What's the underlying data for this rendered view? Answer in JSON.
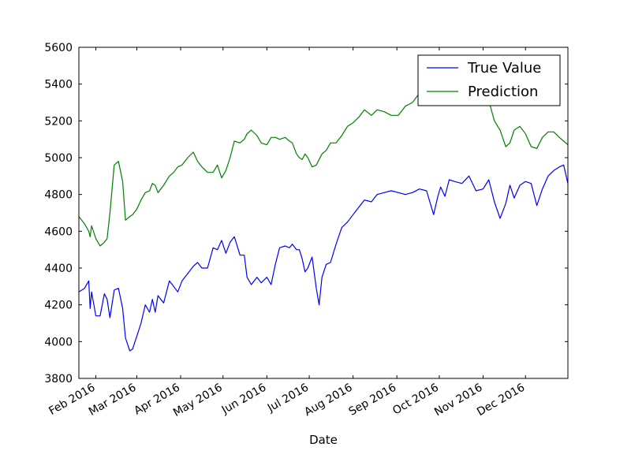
{
  "chart_data": {
    "type": "line",
    "xlabel": "Date",
    "ylabel": "",
    "ylim": [
      3800,
      5600
    ],
    "yticks": [
      3800,
      4000,
      4200,
      4400,
      4600,
      4800,
      5000,
      5200,
      5400,
      5600
    ],
    "xlim": [
      "2016-01-20",
      "2016-12-31"
    ],
    "xticks": [
      {
        "date": "2016-02-01",
        "label": "Feb 2016"
      },
      {
        "date": "2016-03-01",
        "label": "Mar 2016"
      },
      {
        "date": "2016-04-01",
        "label": "Apr 2016"
      },
      {
        "date": "2016-05-01",
        "label": "May 2016"
      },
      {
        "date": "2016-06-01",
        "label": "Jun 2016"
      },
      {
        "date": "2016-07-01",
        "label": "Jul 2016"
      },
      {
        "date": "2016-08-01",
        "label": "Aug 2016"
      },
      {
        "date": "2016-09-01",
        "label": "Sep 2016"
      },
      {
        "date": "2016-10-01",
        "label": "Oct 2016"
      },
      {
        "date": "2016-11-01",
        "label": "Nov 2016"
      },
      {
        "date": "2016-12-01",
        "label": "Dec 2016"
      }
    ],
    "legend": {
      "position": "top-right"
    },
    "grid": false,
    "x": [
      "2016-01-20",
      "2016-01-24",
      "2016-01-27",
      "2016-01-28",
      "2016-01-29",
      "2016-02-01",
      "2016-02-04",
      "2016-02-07",
      "2016-02-09",
      "2016-02-11",
      "2016-02-14",
      "2016-02-17",
      "2016-02-20",
      "2016-02-22",
      "2016-02-25",
      "2016-02-27",
      "2016-03-01",
      "2016-03-04",
      "2016-03-07",
      "2016-03-10",
      "2016-03-12",
      "2016-03-14",
      "2016-03-16",
      "2016-03-20",
      "2016-03-24",
      "2016-03-27",
      "2016-03-30",
      "2016-04-02",
      "2016-04-06",
      "2016-04-10",
      "2016-04-13",
      "2016-04-16",
      "2016-04-20",
      "2016-04-24",
      "2016-04-27",
      "2016-04-30",
      "2016-05-03",
      "2016-05-06",
      "2016-05-09",
      "2016-05-13",
      "2016-05-16",
      "2016-05-18",
      "2016-05-21",
      "2016-05-25",
      "2016-05-28",
      "2016-06-01",
      "2016-06-04",
      "2016-06-07",
      "2016-06-10",
      "2016-06-14",
      "2016-06-17",
      "2016-06-19",
      "2016-06-22",
      "2016-06-24",
      "2016-06-26",
      "2016-06-28",
      "2016-06-30",
      "2016-07-03",
      "2016-07-06",
      "2016-07-08",
      "2016-07-10",
      "2016-07-13",
      "2016-07-16",
      "2016-07-20",
      "2016-07-24",
      "2016-07-28",
      "2016-08-01",
      "2016-08-05",
      "2016-08-09",
      "2016-08-14",
      "2016-08-18",
      "2016-08-23",
      "2016-08-28",
      "2016-09-02",
      "2016-09-07",
      "2016-09-12",
      "2016-09-17",
      "2016-09-22",
      "2016-09-27",
      "2016-09-30",
      "2016-10-02",
      "2016-10-05",
      "2016-10-08",
      "2016-10-12",
      "2016-10-17",
      "2016-10-22",
      "2016-10-27",
      "2016-11-01",
      "2016-11-05",
      "2016-11-09",
      "2016-11-13",
      "2016-11-17",
      "2016-11-20",
      "2016-11-23",
      "2016-11-27",
      "2016-12-01",
      "2016-12-05",
      "2016-12-09",
      "2016-12-13",
      "2016-12-17",
      "2016-12-21",
      "2016-12-25",
      "2016-12-28",
      "2016-12-31"
    ],
    "series": [
      {
        "name": "True Value",
        "color": "#0000ff",
        "values": [
          4270,
          4290,
          4330,
          4180,
          4270,
          4140,
          4140,
          4260,
          4230,
          4130,
          4280,
          4290,
          4180,
          4020,
          3950,
          3960,
          4030,
          4100,
          4200,
          4160,
          4230,
          4160,
          4250,
          4210,
          4330,
          4300,
          4270,
          4330,
          4370,
          4410,
          4430,
          4400,
          4400,
          4510,
          4500,
          4550,
          4480,
          4540,
          4570,
          4470,
          4470,
          4350,
          4310,
          4350,
          4320,
          4350,
          4310,
          4420,
          4510,
          4520,
          4510,
          4530,
          4500,
          4500,
          4450,
          4380,
          4400,
          4460,
          4290,
          4200,
          4350,
          4420,
          4430,
          4530,
          4620,
          4650,
          4690,
          4730,
          4770,
          4760,
          4800,
          4810,
          4820,
          4810,
          4800,
          4810,
          4830,
          4820,
          4690,
          4790,
          4840,
          4790,
          4880,
          4870,
          4860,
          4900,
          4820,
          4830,
          4880,
          4760,
          4670,
          4750,
          4850,
          4780,
          4850,
          4870,
          4860,
          4740,
          4830,
          4900,
          4930,
          4950,
          4960,
          4860
        ]
      },
      {
        "name": "Prediction",
        "color": "#008000",
        "values": [
          4680,
          4640,
          4600,
          4570,
          4630,
          4560,
          4520,
          4540,
          4560,
          4700,
          4960,
          4980,
          4870,
          4660,
          4680,
          4690,
          4720,
          4770,
          4810,
          4820,
          4860,
          4850,
          4810,
          4850,
          4900,
          4920,
          4950,
          4960,
          5000,
          5030,
          4980,
          4950,
          4920,
          4920,
          4960,
          4890,
          4930,
          5000,
          5090,
          5080,
          5100,
          5130,
          5150,
          5120,
          5080,
          5070,
          5110,
          5110,
          5100,
          5110,
          5090,
          5080,
          5020,
          5000,
          4990,
          5020,
          5000,
          4950,
          4960,
          4990,
          5020,
          5040,
          5080,
          5080,
          5120,
          5170,
          5190,
          5220,
          5260,
          5230,
          5260,
          5250,
          5230,
          5230,
          5280,
          5300,
          5350,
          5380,
          5390,
          5370,
          5370,
          5380,
          5400,
          5410,
          5400,
          5390,
          5390,
          5360,
          5310,
          5200,
          5150,
          5060,
          5080,
          5150,
          5170,
          5130,
          5060,
          5050,
          5110,
          5140,
          5140,
          5110,
          5090,
          5070
        ]
      }
    ]
  }
}
